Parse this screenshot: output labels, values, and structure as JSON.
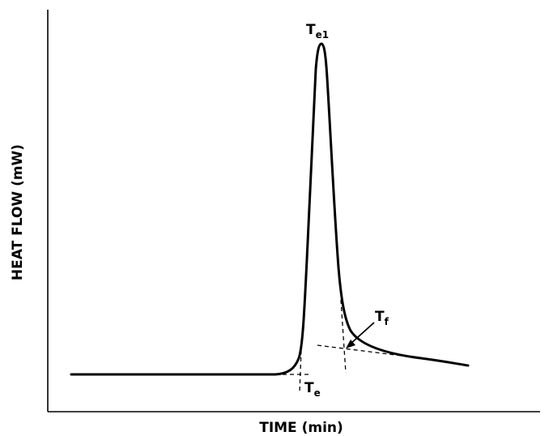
{
  "axes": {
    "x_title": "TIME (min)",
    "y_title": "HEAT FLOW (mW)"
  },
  "labels": {
    "onset": {
      "main": "T",
      "sub": "e"
    },
    "peak": {
      "main": "T",
      "sub": "e1"
    },
    "end": {
      "main": "T",
      "sub": "f"
    }
  }
}
